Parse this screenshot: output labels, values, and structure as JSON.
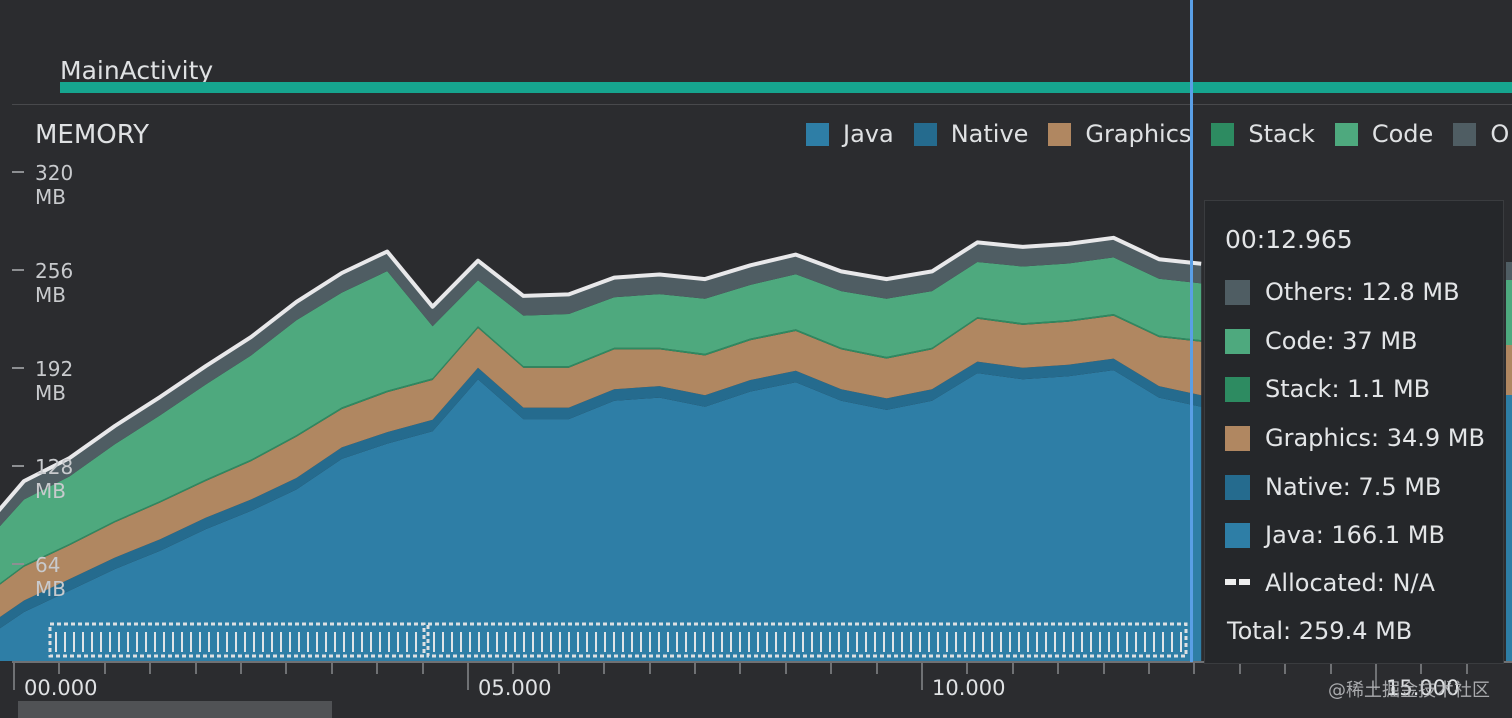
{
  "activity": {
    "label": "MainActivity"
  },
  "memory": {
    "title": "MEMORY"
  },
  "legend": [
    {
      "label": "Java",
      "color": "#2e7ea6"
    },
    {
      "label": "Native",
      "color": "#256b8e"
    },
    {
      "label": "Graphics",
      "color": "#b08761"
    },
    {
      "label": "Stack",
      "color": "#2d8b61"
    },
    {
      "label": "Code",
      "color": "#4ea97e"
    },
    {
      "label": "O",
      "color": "#4f5d63"
    }
  ],
  "y_axis": {
    "labels": [
      "320 MB",
      "256 MB",
      "192 MB",
      "128 MB",
      "64 MB"
    ]
  },
  "x_axis": {
    "labels": [
      "00.000",
      "05.000",
      "10.000",
      "15.000"
    ]
  },
  "tooltip": {
    "time": "00:12.965",
    "rows": [
      {
        "label": "Others: 12.8 MB",
        "color": "#4f5d63"
      },
      {
        "label": "Code: 37 MB",
        "color": "#4ea97e"
      },
      {
        "label": "Stack: 1.1 MB",
        "color": "#2d8b61"
      },
      {
        "label": "Graphics: 34.9 MB",
        "color": "#b08761"
      },
      {
        "label": "Native: 7.5 MB",
        "color": "#256b8e"
      },
      {
        "label": "Java: 166.1 MB",
        "color": "#2e7ea6"
      }
    ],
    "allocated": "Allocated: N/A",
    "total": "Total: 259.4 MB"
  },
  "watermark": "@稀土掘金技术社区",
  "chart_data": {
    "type": "area",
    "stacked": true,
    "title": "MEMORY",
    "xlabel": "",
    "ylabel": "",
    "x_unit": "seconds",
    "y_unit": "MB",
    "ylim": [
      0,
      320
    ],
    "xlim": [
      -0.6,
      16.6
    ],
    "y_ticks": [
      64,
      128,
      192,
      256,
      320
    ],
    "x_ticks": [
      0,
      5,
      10,
      15
    ],
    "x": [
      -0.6,
      0,
      0.5,
      1,
      1.5,
      2,
      2.5,
      3,
      3.5,
      4,
      4.5,
      5,
      5.5,
      6,
      6.5,
      7,
      7.5,
      8,
      8.5,
      9,
      9.5,
      10,
      10.5,
      11,
      11.5,
      12,
      12.5,
      12.965
    ],
    "series": [
      {
        "name": "Java",
        "values": [
          8,
          32,
          46,
          60,
          72,
          86,
          98,
          112,
          132,
          142,
          150,
          184,
          158,
          158,
          170,
          172,
          166,
          176,
          182,
          170,
          164,
          170,
          188,
          184,
          186,
          190,
          172,
          166.1
        ]
      },
      {
        "name": "Native",
        "values": [
          7,
          7.5,
          7.5,
          7.5,
          7.5,
          7.5,
          7.5,
          7.5,
          7.5,
          7.5,
          7.5,
          7.5,
          7.5,
          7.5,
          7.5,
          7.5,
          7.5,
          7.5,
          7.5,
          7.5,
          7.5,
          7.5,
          7.5,
          7.5,
          7.5,
          7.5,
          7.5,
          7.5
        ]
      },
      {
        "name": "Graphics",
        "values": [
          20,
          22,
          22,
          23,
          24,
          24,
          25,
          27,
          25,
          26,
          26,
          26,
          26,
          26,
          26,
          24,
          26,
          26,
          26,
          26,
          26,
          26,
          28,
          28,
          28,
          28,
          32,
          34.9
        ]
      },
      {
        "name": "Stack",
        "values": [
          1,
          1,
          1,
          1,
          1,
          1,
          1,
          1,
          1.1,
          1.1,
          1.1,
          1.1,
          1.1,
          1.1,
          1.1,
          1.1,
          1.1,
          1.1,
          1.1,
          1.1,
          1.1,
          1.1,
          1.1,
          1.1,
          1.1,
          1.1,
          1.1,
          1.1
        ]
      },
      {
        "name": "Code",
        "values": [
          30,
          43,
          44,
          50,
          56,
          62,
          68,
          75,
          75,
          78,
          34,
          30,
          33,
          34,
          33,
          35,
          36,
          35,
          36,
          37,
          38,
          37,
          36,
          37,
          37,
          37,
          37,
          37
        ]
      },
      {
        "name": "Others",
        "values": [
          10,
          12,
          12,
          12,
          12,
          12,
          12,
          12,
          12.8,
          12.8,
          12.8,
          12.8,
          12.8,
          12.8,
          12.8,
          12.8,
          12.8,
          12.8,
          12.8,
          12.8,
          12.8,
          12.8,
          12.8,
          12.8,
          12.8,
          12.8,
          12.8,
          12.8
        ]
      }
    ],
    "cursor_x": 12.965
  }
}
